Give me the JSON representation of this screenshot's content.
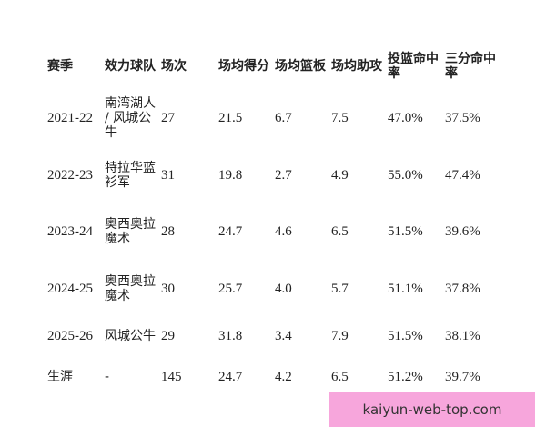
{
  "headers": [
    "赛季",
    "效力球队",
    "场次",
    "场均得分",
    "场均篮板",
    "场均助攻",
    "投篮命中率",
    "三分命中率"
  ],
  "rows": [
    [
      "2021-22",
      "南湾湖人 / 风城公牛",
      "27",
      "21.5",
      "6.7",
      "7.5",
      "47.0%",
      "37.5%"
    ],
    [
      "2022-23",
      "特拉华蓝衫军",
      "31",
      "19.8",
      "2.7",
      "4.9",
      "55.0%",
      "47.4%"
    ],
    [
      "2023-24",
      "奥西奥拉魔术",
      "28",
      "24.7",
      "4.6",
      "6.5",
      "51.5%",
      "39.6%"
    ],
    [
      "2024-25",
      "奥西奥拉魔术",
      "30",
      "25.7",
      "4.0",
      "5.7",
      "51.1%",
      "37.8%"
    ],
    [
      "2025-26",
      "风城公牛",
      "29",
      "31.8",
      "3.4",
      "7.9",
      "51.5%",
      "38.1%"
    ],
    [
      "生涯",
      "-",
      "145",
      "24.7",
      "4.2",
      "6.5",
      "51.2%",
      "39.7%"
    ]
  ],
  "watermark": "kaiyun-web-top.com",
  "colors": {
    "watermark_bg": "#f7a6dc"
  }
}
